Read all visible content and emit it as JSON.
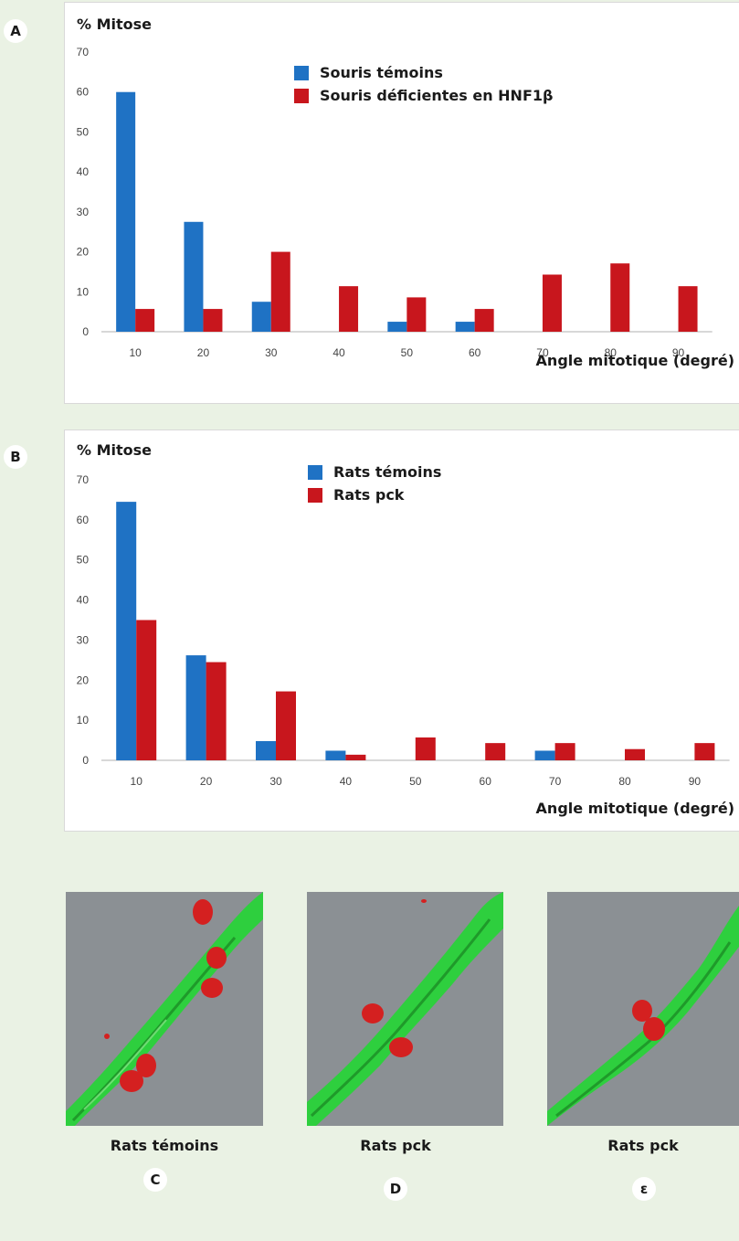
{
  "panels": {
    "A": {
      "letter": "A",
      "mitose_label": "% Mitose",
      "xlabel": "Angle mitotique (degré)"
    },
    "B": {
      "letter": "B",
      "mitose_label": "% Mitose",
      "xlabel": "Angle mitotique (degré)"
    }
  },
  "chart_data": [
    {
      "type": "bar",
      "panel": "A",
      "title": "",
      "ylabel": "% Mitose",
      "xlabel": "Angle mitotique (degré)",
      "ylim": [
        0,
        70
      ],
      "yticks": [
        "0",
        "10",
        "20",
        "30",
        "40",
        "50",
        "60",
        "70"
      ],
      "categories": [
        "10",
        "20",
        "30",
        "40",
        "50",
        "60",
        "70",
        "80",
        "90"
      ],
      "grid": false,
      "legend_position": "top-center",
      "series": [
        {
          "name": "Souris témoins",
          "color": "#1f72c4",
          "values": [
            60,
            27.5,
            7.5,
            0,
            2.5,
            2.5,
            0,
            0,
            0
          ]
        },
        {
          "name": "Souris déficientes en HNF1β",
          "color": "#c8161d",
          "values": [
            5.7,
            5.7,
            20,
            11.4,
            8.6,
            5.7,
            14.3,
            17.1,
            11.4
          ]
        }
      ]
    },
    {
      "type": "bar",
      "panel": "B",
      "title": "",
      "ylabel": "% Mitose",
      "xlabel": "Angle mitotique (degré)",
      "ylim": [
        0,
        70
      ],
      "yticks": [
        "0",
        "10",
        "20",
        "30",
        "40",
        "50",
        "60",
        "70"
      ],
      "categories": [
        "10",
        "20",
        "30",
        "40",
        "50",
        "60",
        "70",
        "80",
        "90"
      ],
      "grid": false,
      "legend_position": "top-center",
      "series": [
        {
          "name": "Rats témoins",
          "color": "#1f72c4",
          "values": [
            64.5,
            26.2,
            4.8,
            2.4,
            0,
            0,
            2.4,
            0,
            0
          ]
        },
        {
          "name": "Rats pck",
          "color": "#c8161d",
          "values": [
            35,
            24.5,
            17.2,
            1.4,
            5.7,
            4.3,
            4.3,
            2.8,
            4.3
          ]
        }
      ]
    }
  ],
  "images": [
    {
      "caption": "Rats témoins",
      "letter": "C",
      "content": "3D reconstruction of a green tubule with red mitotic cells"
    },
    {
      "caption": "Rats pck",
      "letter": "D",
      "content": "3D reconstruction of a green tubule with red mitotic cells"
    },
    {
      "caption": "Rats pck",
      "letter": "ε",
      "content": "3D reconstruction of a green tubule with red mitotic cells"
    }
  ],
  "colors": {
    "blue": "#1f72c4",
    "red": "#c8161d",
    "tubule_green": "#2ecf3e",
    "micro_bg": "#8b9094"
  }
}
